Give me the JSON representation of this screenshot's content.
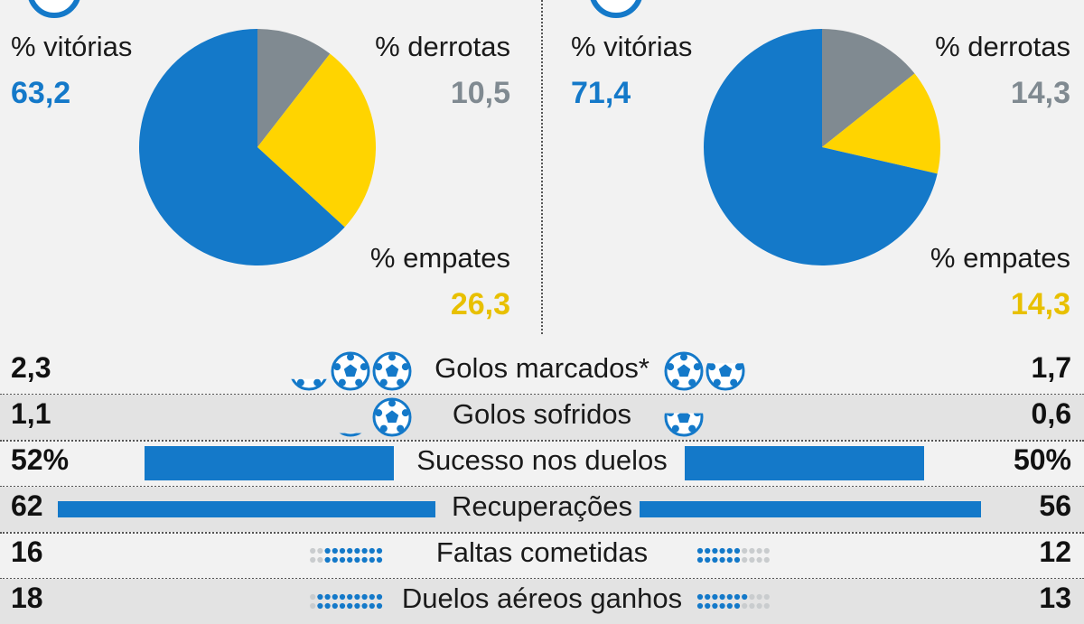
{
  "colors": {
    "wins": "#1479c9",
    "losses": "#808a91",
    "draws": "#ffd400",
    "dot_off": "#c9ccce",
    "dot_on": "#1479c9"
  },
  "chart_data": [
    {
      "type": "pie",
      "slices": [
        {
          "label": "% vitórias",
          "value": 63.2,
          "display": "63,2",
          "color": "#1479c9"
        },
        {
          "label": "% derrotas",
          "value": 10.5,
          "display": "10,5",
          "color": "#808a91"
        },
        {
          "label": "% empates",
          "value": 26.3,
          "display": "26,3",
          "color": "#ffd400"
        }
      ]
    },
    {
      "type": "pie",
      "slices": [
        {
          "label": "% vitórias",
          "value": 71.4,
          "display": "71,4",
          "color": "#1479c9"
        },
        {
          "label": "% derrotas",
          "value": 14.3,
          "display": "14,3",
          "color": "#808a91"
        },
        {
          "label": "% empates",
          "value": 14.3,
          "display": "14,3",
          "color": "#ffd400"
        }
      ]
    },
    {
      "type": "table",
      "rows": [
        {
          "label": "Golos marcados*",
          "left": "2,3",
          "right": "1,7",
          "left_value": 2.3,
          "right_value": 1.7,
          "kind": "balls"
        },
        {
          "label": "Golos sofridos",
          "left": "1,1",
          "right": "0,6",
          "left_value": 1.1,
          "right_value": 0.6,
          "kind": "balls"
        },
        {
          "label": "Sucesso nos duelos",
          "left": "52%",
          "right": "50%",
          "left_value": 52,
          "right_value": 50,
          "kind": "bar"
        },
        {
          "label": "Recuperações",
          "left": "62",
          "right": "56",
          "left_value": 62,
          "right_value": 56,
          "kind": "bar"
        },
        {
          "label": "Faltas cometidas",
          "left": "16",
          "right": "12",
          "left_value": 16,
          "right_value": 12,
          "kind": "dots"
        },
        {
          "label": "Duelos aéreos ganhos",
          "left": "18",
          "right": "13",
          "left_value": 18,
          "right_value": 13,
          "kind": "dots"
        }
      ]
    }
  ]
}
